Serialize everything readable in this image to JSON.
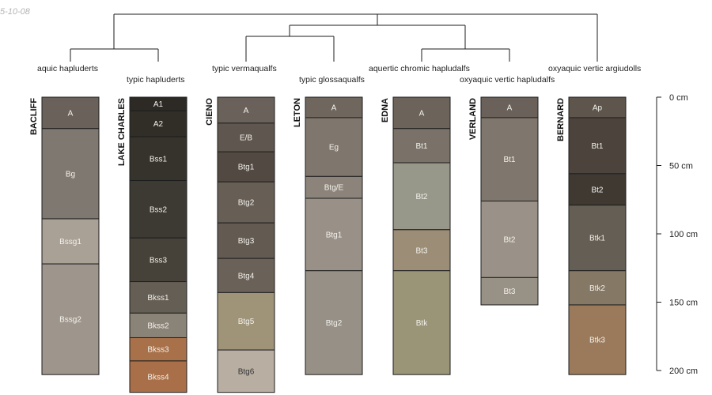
{
  "date_label": "5-10-08",
  "depth_unit": "cm",
  "depth_max": 200,
  "depth_ticks": [
    {
      "value": 0,
      "label": "0 cm"
    },
    {
      "value": 50,
      "label": "50 cm"
    },
    {
      "value": 100,
      "label": "100 cm"
    },
    {
      "value": 150,
      "label": "150 cm"
    },
    {
      "value": 200,
      "label": "200 cm"
    }
  ],
  "profiles": [
    {
      "name": "BACLIFF",
      "taxon": "aquic hapluderts",
      "horizons": [
        {
          "name": "A",
          "top": 0,
          "bottom": 23,
          "color": "#6a625a"
        },
        {
          "name": "Bg",
          "top": 23,
          "bottom": 89,
          "color": "#7f7870"
        },
        {
          "name": "Bssg1",
          "top": 89,
          "bottom": 122,
          "color": "#a9a096"
        },
        {
          "name": "Bssg2",
          "top": 122,
          "bottom": 203,
          "color": "#9e968d"
        }
      ]
    },
    {
      "name": "LAKE CHARLES",
      "taxon": "typic hapluderts",
      "horizons": [
        {
          "name": "A1",
          "top": 0,
          "bottom": 10,
          "color": "#2d2a25"
        },
        {
          "name": "A2",
          "top": 10,
          "bottom": 29,
          "color": "#312e28"
        },
        {
          "name": "Bss1",
          "top": 29,
          "bottom": 61,
          "color": "#36322c"
        },
        {
          "name": "Bss2",
          "top": 61,
          "bottom": 103,
          "color": "#3d3a33"
        },
        {
          "name": "Bss3",
          "top": 103,
          "bottom": 135,
          "color": "#46423a"
        },
        {
          "name": "Bkss1",
          "top": 135,
          "bottom": 158,
          "color": "#645e55"
        },
        {
          "name": "Bkss2",
          "top": 158,
          "bottom": 176,
          "color": "#8a8378"
        },
        {
          "name": "Bkss3",
          "top": 176,
          "bottom": 193,
          "color": "#a8714a"
        },
        {
          "name": "Bkss4",
          "top": 193,
          "bottom": 216,
          "color": "#a96f48"
        }
      ]
    },
    {
      "name": "CIENO",
      "taxon": "typic vermaqualfs",
      "horizons": [
        {
          "name": "A",
          "top": 0,
          "bottom": 19,
          "color": "#6a625a"
        },
        {
          "name": "E/B",
          "top": 19,
          "bottom": 40,
          "color": "#5f574f"
        },
        {
          "name": "Btg1",
          "top": 40,
          "bottom": 62,
          "color": "#524a42"
        },
        {
          "name": "Btg2",
          "top": 62,
          "bottom": 92,
          "color": "#675f56"
        },
        {
          "name": "Btg3",
          "top": 92,
          "bottom": 118,
          "color": "#635b52"
        },
        {
          "name": "Btg4",
          "top": 118,
          "bottom": 143,
          "color": "#6a6158"
        },
        {
          "name": "Btg5",
          "top": 143,
          "bottom": 185,
          "color": "#a09478"
        },
        {
          "name": "Btg6",
          "top": 185,
          "bottom": 216,
          "color": "#b8aea2"
        }
      ]
    },
    {
      "name": "LETON",
      "taxon": "typic glossaqualfs",
      "horizons": [
        {
          "name": "A",
          "top": 0,
          "bottom": 15,
          "color": "#6f675e"
        },
        {
          "name": "Eg",
          "top": 15,
          "bottom": 58,
          "color": "#7f776e"
        },
        {
          "name": "Btg/E",
          "top": 58,
          "bottom": 74,
          "color": "#8c847a"
        },
        {
          "name": "Btg1",
          "top": 74,
          "bottom": 127,
          "color": "#999188"
        },
        {
          "name": "Btg2",
          "top": 127,
          "bottom": 203,
          "color": "#969087"
        }
      ]
    },
    {
      "name": "EDNA",
      "taxon": "aquertic chromic hapludalfs",
      "horizons": [
        {
          "name": "A",
          "top": 0,
          "bottom": 23,
          "color": "#6c645b"
        },
        {
          "name": "Bt1",
          "top": 23,
          "bottom": 48,
          "color": "#7a7269"
        },
        {
          "name": "Bt2",
          "top": 48,
          "bottom": 97,
          "color": "#97978a"
        },
        {
          "name": "Bt3",
          "top": 97,
          "bottom": 127,
          "color": "#9c8e76"
        },
        {
          "name": "Btk",
          "top": 127,
          "bottom": 203,
          "color": "#9a9577"
        }
      ]
    },
    {
      "name": "VERLAND",
      "taxon": "oxyaquic vertic hapludalfs",
      "horizons": [
        {
          "name": "A",
          "top": 0,
          "bottom": 15,
          "color": "#6a625a"
        },
        {
          "name": "Bt1",
          "top": 15,
          "bottom": 76,
          "color": "#7f776e"
        },
        {
          "name": "Bt2",
          "top": 76,
          "bottom": 132,
          "color": "#9a9288"
        },
        {
          "name": "Bt3",
          "top": 132,
          "bottom": 152,
          "color": "#979186"
        }
      ]
    },
    {
      "name": "BERNARD",
      "taxon": "oxyaquic vertic argiudolls",
      "horizons": [
        {
          "name": "Ap",
          "top": 0,
          "bottom": 15,
          "color": "#5e564d"
        },
        {
          "name": "Bt1",
          "top": 15,
          "bottom": 56,
          "color": "#4c443c"
        },
        {
          "name": "Bt2",
          "top": 56,
          "bottom": 79,
          "color": "#3f3932"
        },
        {
          "name": "Btk1",
          "top": 79,
          "bottom": 127,
          "color": "#655e54"
        },
        {
          "name": "Btk2",
          "top": 127,
          "bottom": 152,
          "color": "#857864"
        },
        {
          "name": "Btk3",
          "top": 152,
          "bottom": 203,
          "color": "#9a7a5a"
        }
      ]
    }
  ]
}
